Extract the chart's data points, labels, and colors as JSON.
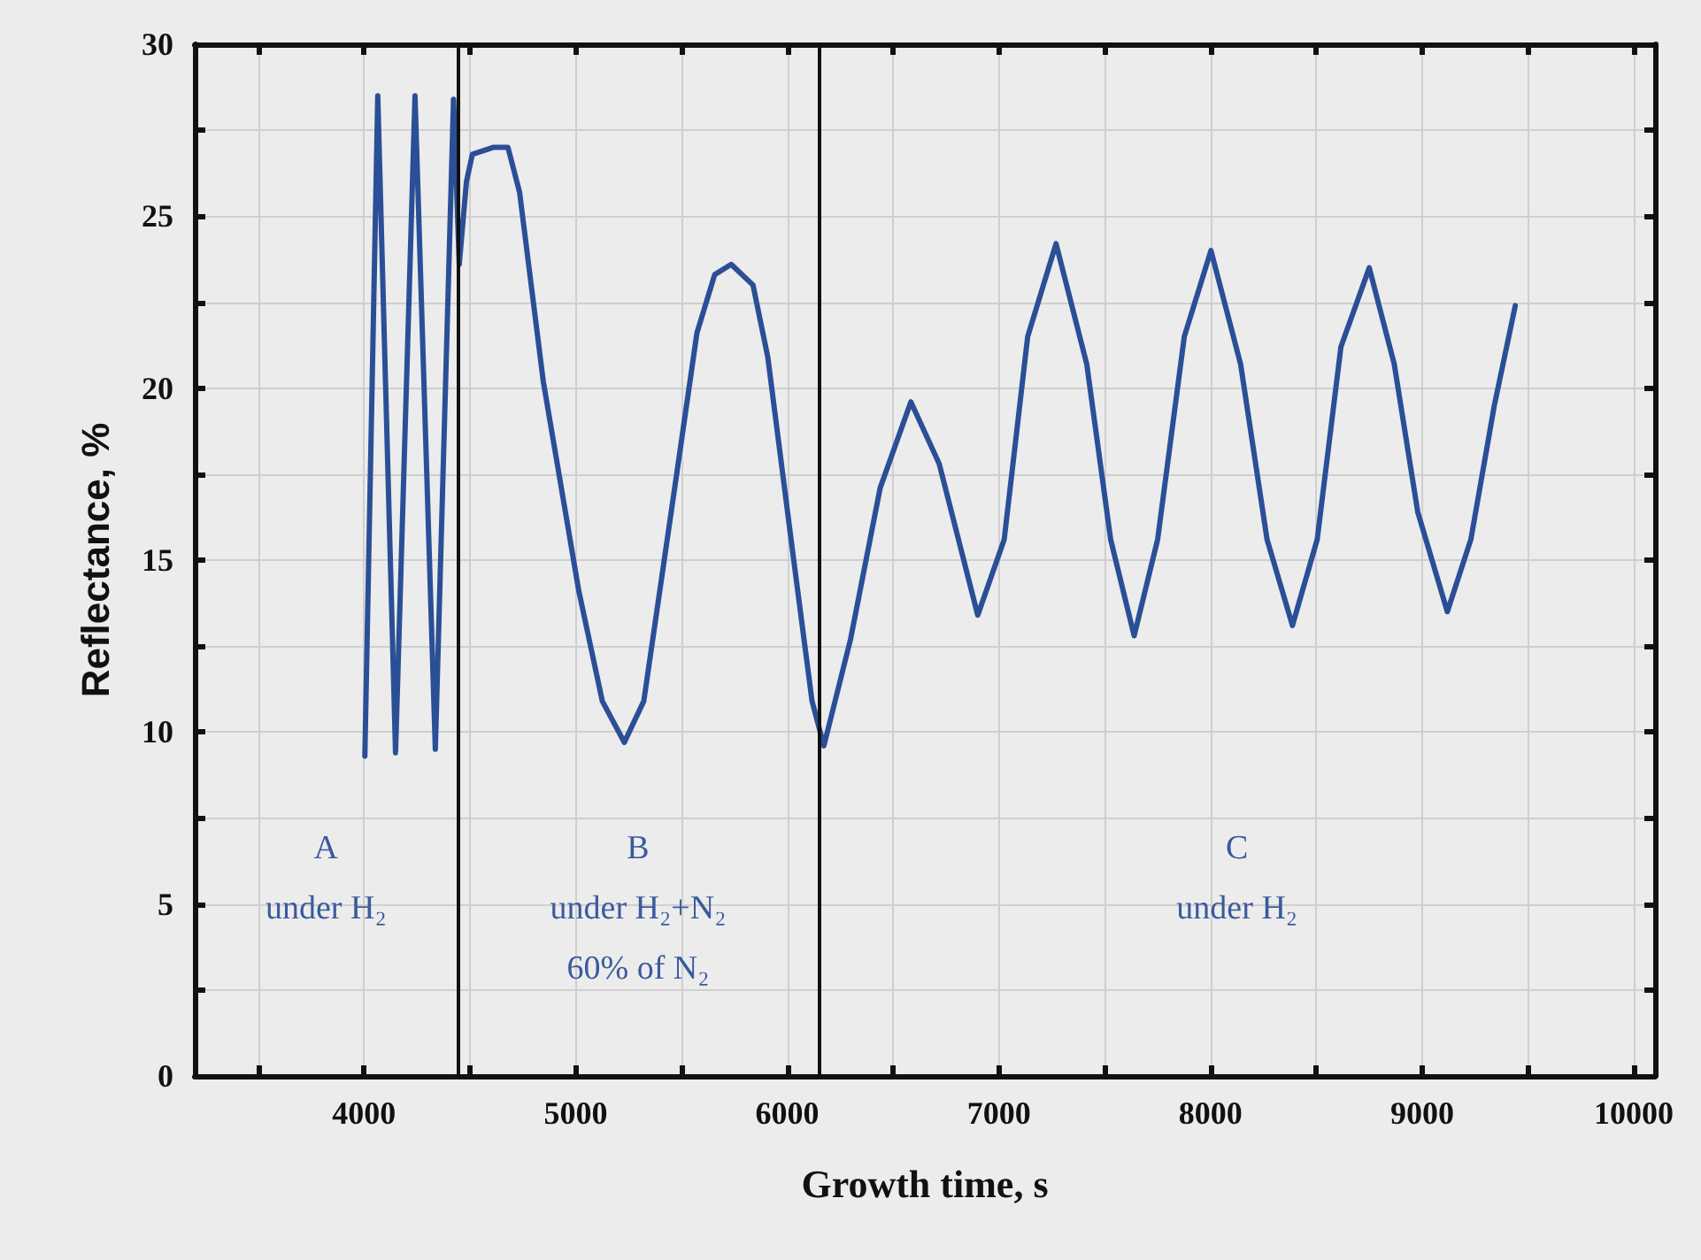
{
  "chart_data": {
    "type": "line",
    "xlabel": "Growth time, s",
    "ylabel": "Reflectance, %",
    "xlim": [
      3200,
      10100
    ],
    "ylim": [
      0,
      30
    ],
    "xticks": [
      {
        "value": 3500,
        "label": null
      },
      4000,
      {
        "value": 4500,
        "label": null
      },
      5000,
      {
        "value": 5500,
        "label": null
      },
      6000,
      {
        "value": 6500,
        "label": null
      },
      7000,
      {
        "value": 7500,
        "label": null
      },
      8000,
      {
        "value": 8500,
        "label": null
      },
      9000,
      {
        "value": 9500,
        "label": null
      },
      10000
    ],
    "yticks": [
      0,
      {
        "value": 2.5,
        "label": null
      },
      5,
      {
        "value": 7.5,
        "label": null
      },
      10,
      {
        "value": 12.5,
        "label": null
      },
      15,
      {
        "value": 17.5,
        "label": null
      },
      20,
      {
        "value": 22.5,
        "label": null
      },
      25,
      {
        "value": 27.5,
        "label": null
      },
      30
    ],
    "grid": true,
    "legend": false,
    "marker": "none",
    "line_style": "solid",
    "series": [
      {
        "color": "#2b4f96",
        "x": [
          4004,
          4065,
          4149,
          4241,
          4337,
          4423,
          4450,
          4484,
          4512,
          4610,
          4680,
          4735,
          4847,
          5015,
          5126,
          5230,
          5322,
          5461,
          5573,
          5657,
          5735,
          5838,
          5908,
          6020,
          6117,
          6173,
          6299,
          6439,
          6584,
          6718,
          6900,
          7025,
          7136,
          7270,
          7415,
          7528,
          7639,
          7750,
          7876,
          8002,
          8142,
          8267,
          8387,
          8504,
          8616,
          8750,
          8868,
          8979,
          9119,
          9230,
          9341,
          9440
        ],
        "values": [
          9.3,
          28.5,
          9.4,
          28.5,
          9.5,
          28.4,
          23.6,
          26.0,
          26.8,
          27.0,
          27.0,
          25.7,
          20.2,
          14.1,
          10.9,
          9.7,
          10.9,
          16.8,
          21.6,
          23.3,
          23.6,
          23.0,
          20.9,
          15.5,
          10.9,
          9.6,
          12.7,
          17.1,
          19.6,
          17.8,
          13.4,
          15.6,
          21.5,
          24.2,
          20.7,
          15.6,
          12.8,
          15.6,
          21.5,
          24.0,
          20.7,
          15.6,
          13.1,
          15.6,
          21.2,
          23.5,
          20.7,
          16.4,
          13.5,
          15.6,
          19.5,
          22.4
        ]
      }
    ],
    "ref_lines": [
      {
        "axis": "x",
        "value": 4440,
        "color": "#111111"
      },
      {
        "axis": "x",
        "value": 6150,
        "color": "#111111"
      }
    ],
    "annotations": [
      "A\nunder H₂",
      "B\nunder H₂+N₂\n60% of N₂",
      "C\nunder H₂"
    ]
  }
}
